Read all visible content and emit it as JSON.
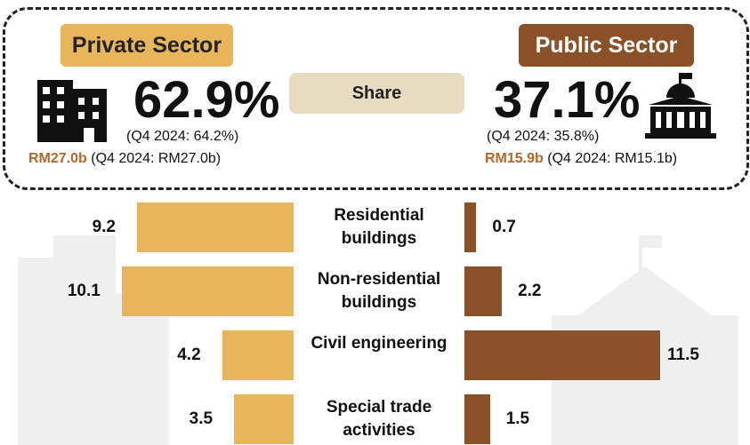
{
  "summary": {
    "share_label": "Share",
    "private": {
      "share": "62.9%",
      "prev_share": "(Q4 2024: 64.2%)",
      "value": "RM27.0b",
      "prev_value": "(Q4 2024: RM27.0b)"
    },
    "public": {
      "share": "37.1%",
      "prev_share": "(Q4 2024: 35.8%)",
      "value": "RM15.9b",
      "prev_value": "(Q4 2024: RM15.1b)"
    }
  },
  "chart_data": {
    "type": "bar",
    "categories": [
      "Residential buildings",
      "Non-residential buildings",
      "Civil engineering",
      "Special trade activities"
    ],
    "series": [
      {
        "name": "Private Sector",
        "color": "#e8b55a",
        "values": [
          9.2,
          10.1,
          4.2,
          3.5
        ]
      },
      {
        "name": "Public Sector",
        "color": "#8b5128",
        "values": [
          0.7,
          2.2,
          11.5,
          1.5
        ]
      }
    ]
  }
}
